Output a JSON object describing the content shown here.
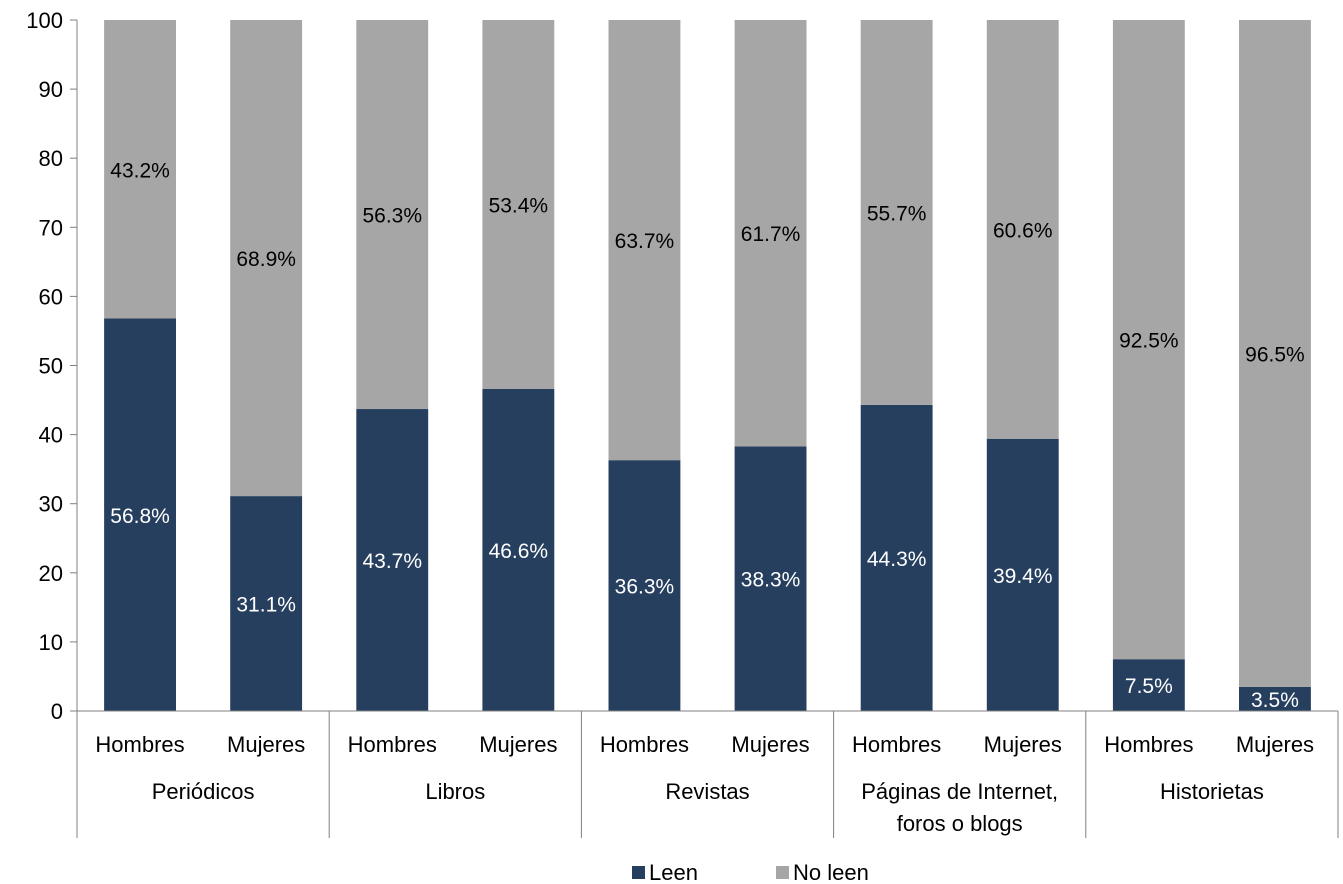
{
  "chart_data": {
    "type": "bar",
    "stacked": true,
    "title": "",
    "xlabel": "",
    "ylabel": "",
    "ylim": [
      0,
      100
    ],
    "yticks": [
      0,
      10,
      20,
      30,
      40,
      50,
      60,
      70,
      80,
      90,
      100
    ],
    "groups": [
      "Periódicos",
      "Libros",
      "Revistas",
      "Páginas de Internet, foros o blogs",
      "Historietas"
    ],
    "group_label_lines": [
      [
        "Periódicos"
      ],
      [
        "Libros"
      ],
      [
        "Revistas"
      ],
      [
        "Páginas de Internet,",
        "foros o blogs"
      ],
      [
        "Historietas"
      ]
    ],
    "subcategories": [
      "Hombres",
      "Mujeres"
    ],
    "series": [
      {
        "name": "Leen",
        "color": "#263f5e",
        "label_color": "#ffffff",
        "values": [
          56.8,
          31.1,
          43.7,
          46.6,
          36.3,
          38.3,
          44.3,
          39.4,
          7.5,
          3.5
        ],
        "labels": [
          "56.8%",
          "31.1%",
          "43.7%",
          "46.6%",
          "36.3%",
          "38.3%",
          "44.3%",
          "39.4%",
          "7.5%",
          "3.5%"
        ]
      },
      {
        "name": "No leen",
        "color": "#a6a6a6",
        "label_color": "#000000",
        "values": [
          43.2,
          68.9,
          56.3,
          53.4,
          63.7,
          61.7,
          55.7,
          60.6,
          92.5,
          96.5
        ],
        "labels": [
          "43.2%",
          "68.9%",
          "56.3%",
          "53.4%",
          "63.7%",
          "61.7%",
          "55.7%",
          "60.6%",
          "92.5%",
          "96.5%"
        ]
      }
    ],
    "legend_position": "bottom-center",
    "grid": false
  }
}
